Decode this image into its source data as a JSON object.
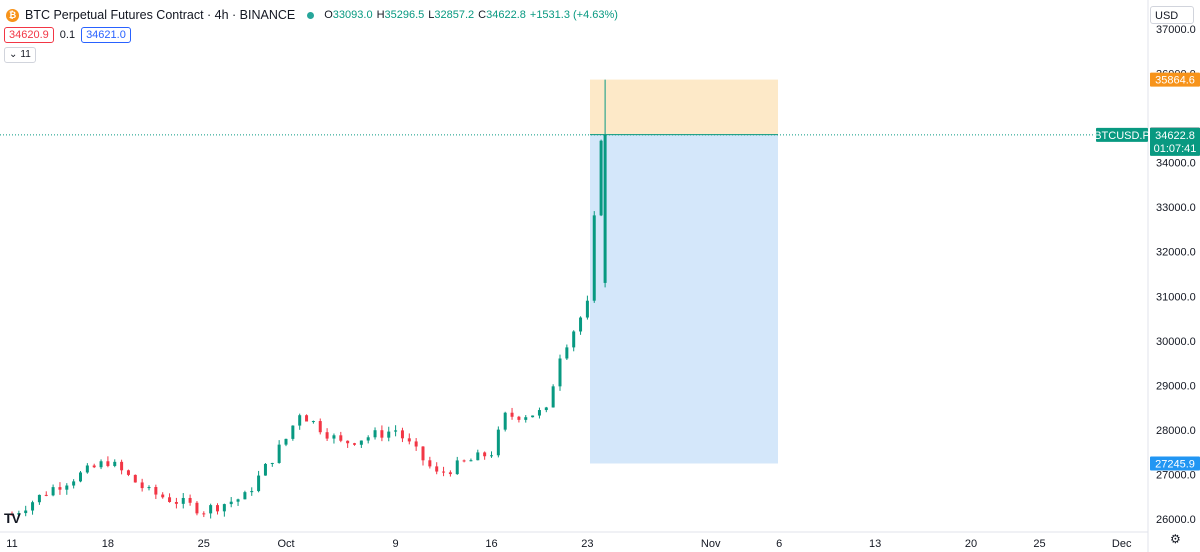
{
  "header": {
    "coin_glyph": "₿",
    "title": "BTC Perpetual Futures Contract · 4h · BINANCE",
    "open_label": "O",
    "open": "33093.0",
    "high_label": "H",
    "high": "35296.5",
    "low_label": "L",
    "low": "32857.2",
    "close_label": "C",
    "close": "34622.8",
    "change": "+1531.3 (+4.63%)"
  },
  "trade": {
    "sell_price": "34620.9",
    "spread": "0.1",
    "buy_price": "34621.0"
  },
  "indicators_toggle": {
    "arrow": "⌄",
    "count": "11"
  },
  "currency": "USD",
  "colors": {
    "up": "#089981",
    "down": "#f23645",
    "stop_zone": "#fde9c8",
    "target_zone": "#d4e7fa",
    "stop_label": "#f7931a",
    "target_label": "#2196f3",
    "entry_label": "#363a45",
    "price_label": "#089981"
  },
  "chart_data": {
    "type": "candlestick",
    "symbol": "BTCUSD.P",
    "timeframe": "4h",
    "x_ticks": [
      "11",
      "18",
      "25",
      "Oct",
      "9",
      "16",
      "23",
      "Nov",
      "6",
      "13",
      "20",
      "25",
      "Dec"
    ],
    "y_ticks": [
      "37000.0",
      "36000.0",
      "34000.0",
      "33000.0",
      "32000.0",
      "31000.0",
      "30000.0",
      "29000.0",
      "28000.0",
      "27000.0",
      "26000.0"
    ],
    "ylim": [
      25700,
      37300
    ],
    "price_markers": {
      "stop": "35864.6",
      "entry": "34627.5",
      "current_symbol": "BTCUSD.P",
      "current": "34622.8",
      "countdown": "01:07:41",
      "target": "27245.9"
    },
    "waypoints": [
      {
        "date": "Sep 11",
        "price": 26100
      },
      {
        "date": "Sep 14",
        "price": 26700
      },
      {
        "date": "Sep 18",
        "price": 27300
      },
      {
        "date": "Sep 21",
        "price": 26600
      },
      {
        "date": "Sep 25",
        "price": 26200
      },
      {
        "date": "Sep 28",
        "price": 26500
      },
      {
        "date": "Oct 1",
        "price": 27800
      },
      {
        "date": "Oct 2",
        "price": 28400
      },
      {
        "date": "Oct 5",
        "price": 27700
      },
      {
        "date": "Oct 9",
        "price": 28000
      },
      {
        "date": "Oct 12",
        "price": 27000
      },
      {
        "date": "Oct 16",
        "price": 27500
      },
      {
        "date": "Oct 17",
        "price": 28300
      },
      {
        "date": "Oct 20",
        "price": 28400
      },
      {
        "date": "Oct 21",
        "price": 29700
      },
      {
        "date": "Oct 23",
        "price": 30800
      },
      {
        "date": "Oct 24",
        "price": 34600
      }
    ]
  }
}
